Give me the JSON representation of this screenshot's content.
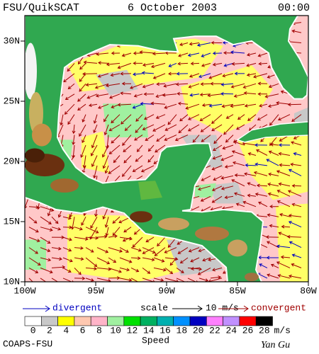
{
  "header": {
    "title": "FSU/QuikSCAT",
    "date": "6 October 2003",
    "time": "00:00"
  },
  "map": {
    "lon_ticks": [
      {
        "value": -100,
        "label": "100W"
      },
      {
        "value": -95,
        "label": "95W"
      },
      {
        "value": -90,
        "label": "90W"
      },
      {
        "value": -85,
        "label": "85W"
      },
      {
        "value": -80,
        "label": "80W"
      }
    ],
    "lat_ticks": [
      {
        "value": 10,
        "label": "10N"
      },
      {
        "value": 15,
        "label": "15N"
      },
      {
        "value": 20,
        "label": "20N"
      },
      {
        "value": 25,
        "label": "25N"
      },
      {
        "value": 30,
        "label": "30N"
      }
    ]
  },
  "legend": {
    "divergent": "divergent",
    "scale": "scale",
    "scale_value": "10 m/s",
    "convergent": "convergent"
  },
  "colorbar": {
    "label": "Speed",
    "unit": "m/s",
    "ticks": [
      0,
      2,
      4,
      6,
      8,
      10,
      12,
      14,
      16,
      18,
      20,
      22,
      24,
      26,
      28
    ],
    "colors": [
      "#ffffff",
      "#c8c8c8",
      "#ffff00",
      "#ffc8b0",
      "#ffb4c8",
      "#a0f0a0",
      "#00e000",
      "#00b060",
      "#00b0b0",
      "#0090ff",
      "#0000c0",
      "#ff80ff",
      "#c090ff",
      "#ff0000",
      "#000000"
    ]
  },
  "footer": {
    "credit": "COAPS-FSU",
    "author": "Yan Gu"
  }
}
